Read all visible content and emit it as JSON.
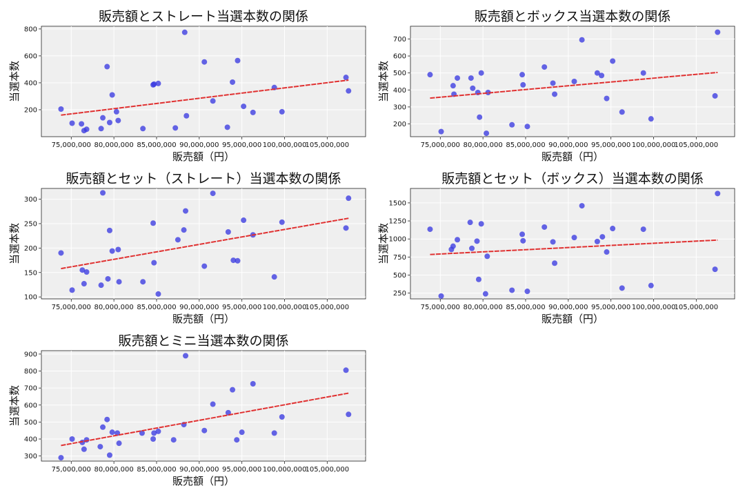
{
  "figure": {
    "background": "#ffffff",
    "plot_background": "#efefef"
  },
  "chart_data": [
    {
      "type": "scatter",
      "title": "販売額とストレート当選本数の関係",
      "xlabel": "販売額（円）",
      "ylabel": "当選本数",
      "xlim": [
        71500000,
        109500000
      ],
      "ylim": [
        0,
        820
      ],
      "xticks": [
        75000000,
        80000000,
        85000000,
        90000000,
        95000000,
        100000000,
        105000000
      ],
      "xtick_labels": [
        "75,000,000",
        "80,000,000",
        "85,000,000",
        "90,000,000",
        "95,000,000",
        "100,000,000",
        "105,000,000"
      ],
      "yticks": [
        200,
        400,
        600,
        800
      ],
      "ytick_labels": [
        "200",
        "400",
        "600",
        "800"
      ],
      "grid": true,
      "point_color": "#3a3ae0",
      "trend_color": "#e03030",
      "trend": [
        [
          73800000,
          160
        ],
        [
          107500000,
          420
        ]
      ],
      "points": [
        [
          73800000,
          205
        ],
        [
          75100000,
          100
        ],
        [
          76200000,
          95
        ],
        [
          76500000,
          45
        ],
        [
          76800000,
          55
        ],
        [
          78500000,
          60
        ],
        [
          78700000,
          140
        ],
        [
          79200000,
          520
        ],
        [
          79500000,
          105
        ],
        [
          79800000,
          310
        ],
        [
          80300000,
          185
        ],
        [
          80500000,
          120
        ],
        [
          83400000,
          60
        ],
        [
          84600000,
          385
        ],
        [
          84700000,
          390
        ],
        [
          85200000,
          395
        ],
        [
          87200000,
          65
        ],
        [
          88300000,
          775
        ],
        [
          88500000,
          155
        ],
        [
          90600000,
          555
        ],
        [
          91600000,
          265
        ],
        [
          93300000,
          70
        ],
        [
          93900000,
          405
        ],
        [
          94500000,
          565
        ],
        [
          95200000,
          225
        ],
        [
          96300000,
          180
        ],
        [
          98800000,
          365
        ],
        [
          99700000,
          185
        ],
        [
          107200000,
          440
        ],
        [
          107500000,
          340
        ]
      ]
    },
    {
      "type": "scatter",
      "title": "販売額とボックス当選本数の関係",
      "xlabel": "販売額（円）",
      "ylabel": "当選本数",
      "xlim": [
        71500000,
        109500000
      ],
      "ylim": [
        125,
        775
      ],
      "xticks": [
        75000000,
        80000000,
        85000000,
        90000000,
        95000000,
        100000000,
        105000000
      ],
      "xtick_labels": [
        "75,000,000",
        "80,000,000",
        "85,000,000",
        "90,000,000",
        "95,000,000",
        "100,000,000",
        "105,000,000"
      ],
      "yticks": [
        200,
        300,
        400,
        500,
        600,
        700
      ],
      "ytick_labels": [
        "200",
        "300",
        "400",
        "500",
        "600",
        "700"
      ],
      "grid": true,
      "point_color": "#3a3ae0",
      "trend_color": "#e03030",
      "trend": [
        [
          73800000,
          352
        ],
        [
          107500000,
          503
        ]
      ],
      "points": [
        [
          73800000,
          490
        ],
        [
          75100000,
          155
        ],
        [
          76500000,
          425
        ],
        [
          76600000,
          375
        ],
        [
          77000000,
          470
        ],
        [
          78600000,
          470
        ],
        [
          78800000,
          410
        ],
        [
          79400000,
          385
        ],
        [
          79600000,
          240
        ],
        [
          79800000,
          500
        ],
        [
          80400000,
          145
        ],
        [
          80600000,
          385
        ],
        [
          83400000,
          195
        ],
        [
          84600000,
          490
        ],
        [
          84700000,
          430
        ],
        [
          85200000,
          185
        ],
        [
          87200000,
          535
        ],
        [
          88200000,
          440
        ],
        [
          88400000,
          375
        ],
        [
          90700000,
          450
        ],
        [
          91600000,
          695
        ],
        [
          93400000,
          500
        ],
        [
          93900000,
          485
        ],
        [
          94500000,
          350
        ],
        [
          95200000,
          570
        ],
        [
          96300000,
          270
        ],
        [
          98800000,
          500
        ],
        [
          99700000,
          230
        ],
        [
          107200000,
          365
        ],
        [
          107500000,
          740
        ]
      ]
    },
    {
      "type": "scatter",
      "title": "販売額とセット（ストレート）当選本数の関係",
      "xlabel": "販売額（円）",
      "ylabel": "当選本数",
      "xlim": [
        71500000,
        109500000
      ],
      "ylim": [
        96,
        322
      ],
      "xticks": [
        75000000,
        80000000,
        85000000,
        90000000,
        95000000,
        100000000,
        105000000
      ],
      "xtick_labels": [
        "75,000,000",
        "80,000,000",
        "85,000,000",
        "90,000,000",
        "95,000,000",
        "100,000,000",
        "105,000,000"
      ],
      "yticks": [
        100,
        150,
        200,
        250,
        300
      ],
      "ytick_labels": [
        "100",
        "150",
        "200",
        "250",
        "300"
      ],
      "grid": true,
      "point_color": "#3a3ae0",
      "trend_color": "#e03030",
      "trend": [
        [
          73800000,
          158
        ],
        [
          107500000,
          261
        ]
      ],
      "points": [
        [
          73800000,
          190
        ],
        [
          75100000,
          114
        ],
        [
          76300000,
          155
        ],
        [
          76500000,
          127
        ],
        [
          76800000,
          151
        ],
        [
          78500000,
          124
        ],
        [
          78700000,
          313
        ],
        [
          79300000,
          137
        ],
        [
          79500000,
          236
        ],
        [
          79800000,
          194
        ],
        [
          80500000,
          197
        ],
        [
          80600000,
          131
        ],
        [
          83400000,
          131
        ],
        [
          84600000,
          251
        ],
        [
          84700000,
          170
        ],
        [
          85200000,
          106
        ],
        [
          87500000,
          217
        ],
        [
          88200000,
          237
        ],
        [
          88400000,
          276
        ],
        [
          90600000,
          163
        ],
        [
          91600000,
          312
        ],
        [
          93400000,
          233
        ],
        [
          94000000,
          175
        ],
        [
          94500000,
          174
        ],
        [
          95200000,
          257
        ],
        [
          96300000,
          227
        ],
        [
          98800000,
          141
        ],
        [
          99700000,
          253
        ],
        [
          107200000,
          241
        ],
        [
          107500000,
          302
        ]
      ]
    },
    {
      "type": "scatter",
      "title": "販売額とセット（ボックス）当選本数の関係",
      "xlabel": "販売額（円）",
      "ylabel": "当選本数",
      "xlim": [
        71500000,
        109500000
      ],
      "ylim": [
        170,
        1700
      ],
      "xticks": [
        75000000,
        80000000,
        85000000,
        90000000,
        95000000,
        100000000,
        105000000
      ],
      "xtick_labels": [
        "75,000,000",
        "80,000,000",
        "85,000,000",
        "90,000,000",
        "95,000,000",
        "100,000,000",
        "105,000,000"
      ],
      "yticks": [
        250,
        500,
        750,
        1000,
        1250,
        1500
      ],
      "ytick_labels": [
        "250",
        "500",
        "750",
        "1000",
        "1250",
        "1500"
      ],
      "grid": true,
      "point_color": "#3a3ae0",
      "trend_color": "#e03030",
      "trend": [
        [
          73800000,
          785
        ],
        [
          107500000,
          985
        ]
      ],
      "points": [
        [
          73800000,
          1135
        ],
        [
          75100000,
          210
        ],
        [
          76300000,
          855
        ],
        [
          76500000,
          900
        ],
        [
          77000000,
          990
        ],
        [
          78500000,
          1230
        ],
        [
          78700000,
          870
        ],
        [
          79300000,
          970
        ],
        [
          79500000,
          440
        ],
        [
          79800000,
          1210
        ],
        [
          80300000,
          240
        ],
        [
          80500000,
          760
        ],
        [
          83400000,
          290
        ],
        [
          84600000,
          1065
        ],
        [
          84700000,
          975
        ],
        [
          85200000,
          275
        ],
        [
          87200000,
          1165
        ],
        [
          88200000,
          960
        ],
        [
          88400000,
          665
        ],
        [
          90700000,
          1020
        ],
        [
          91600000,
          1460
        ],
        [
          93400000,
          965
        ],
        [
          94000000,
          1030
        ],
        [
          94500000,
          820
        ],
        [
          95200000,
          1145
        ],
        [
          96300000,
          320
        ],
        [
          98800000,
          1135
        ],
        [
          99700000,
          355
        ],
        [
          107200000,
          580
        ],
        [
          107500000,
          1630
        ]
      ]
    },
    {
      "type": "scatter",
      "title": "販売額とミニ当選本数の関係",
      "xlabel": "販売額（円）",
      "ylabel": "当選本数",
      "xlim": [
        71500000,
        109500000
      ],
      "ylim": [
        270,
        920
      ],
      "xticks": [
        75000000,
        80000000,
        85000000,
        90000000,
        95000000,
        100000000,
        105000000
      ],
      "xtick_labels": [
        "75,000,000",
        "80,000,000",
        "85,000,000",
        "90,000,000",
        "95,000,000",
        "100,000,000",
        "105,000,000"
      ],
      "yticks": [
        300,
        400,
        500,
        600,
        700,
        800,
        900
      ],
      "ytick_labels": [
        "300",
        "400",
        "500",
        "600",
        "700",
        "800",
        "900"
      ],
      "grid": true,
      "point_color": "#3a3ae0",
      "trend_color": "#e03030",
      "trend": [
        [
          73800000,
          362
        ],
        [
          107500000,
          670
        ]
      ],
      "points": [
        [
          73800000,
          290
        ],
        [
          75100000,
          400
        ],
        [
          76300000,
          380
        ],
        [
          76500000,
          340
        ],
        [
          76800000,
          395
        ],
        [
          78400000,
          355
        ],
        [
          78700000,
          470
        ],
        [
          79200000,
          515
        ],
        [
          79500000,
          305
        ],
        [
          79800000,
          440
        ],
        [
          80400000,
          435
        ],
        [
          80600000,
          375
        ],
        [
          83300000,
          435
        ],
        [
          84600000,
          400
        ],
        [
          84700000,
          435
        ],
        [
          85200000,
          445
        ],
        [
          87000000,
          395
        ],
        [
          88200000,
          485
        ],
        [
          88400000,
          890
        ],
        [
          90600000,
          450
        ],
        [
          91600000,
          605
        ],
        [
          93400000,
          555
        ],
        [
          93900000,
          690
        ],
        [
          94400000,
          395
        ],
        [
          95000000,
          440
        ],
        [
          96300000,
          725
        ],
        [
          98800000,
          435
        ],
        [
          99700000,
          530
        ],
        [
          107200000,
          805
        ],
        [
          107500000,
          545
        ]
      ]
    }
  ]
}
